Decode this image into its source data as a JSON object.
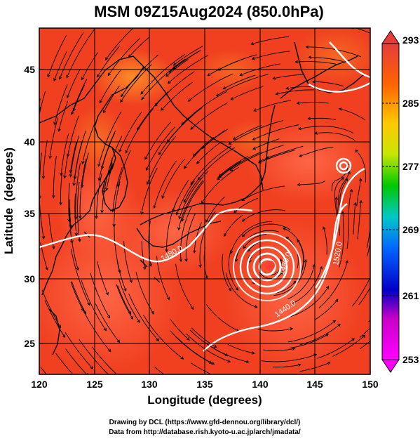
{
  "title": "MSM 09Z15Aug2024 (850.0hPa)",
  "x_axis": {
    "label": "Longitude (degrees)",
    "range": [
      120,
      150
    ],
    "ticks": [
      120,
      125,
      130,
      135,
      140,
      145,
      150
    ],
    "tick_labels": [
      "120",
      "125",
      "130",
      "135",
      "140",
      "145",
      "150"
    ]
  },
  "y_axis": {
    "label": "Latitude  (degrees)",
    "range": [
      22.4,
      47.6
    ],
    "ticks": [
      25,
      30,
      35,
      40,
      45
    ],
    "tick_labels": [
      "25",
      "30",
      "35",
      "40",
      "45"
    ]
  },
  "colorbar": {
    "range": [
      253,
      293
    ],
    "tick_labels": [
      "293",
      "285",
      "277",
      "269",
      "261",
      "253"
    ],
    "colors": [
      "#ff00ff",
      "#0000c8",
      "#0096ff",
      "#00c8c8",
      "#00c800",
      "#c8e600",
      "#ffc800",
      "#ff6400",
      "#ff3c14",
      "#e63c3c"
    ]
  },
  "contour_labels": [
    "1480.0",
    "1480.0",
    "1440.0",
    "1520.0"
  ],
  "typhoon_center": {
    "lon": 141.0,
    "lat": 31.0
  },
  "field_colors": {
    "background": "#f04020",
    "warm": "#ff5a3c",
    "cool_land": "#ff8c28",
    "coast": "#000000",
    "grid": "#000000",
    "contour": "#ffffff"
  },
  "credits": {
    "line1": "Drawing by DCL (https://www.gfd-dennou.org/library/dcl/)",
    "line2": "Data from http://database.rish.kyoto-u.ac.jp/arch/jmadata/"
  }
}
